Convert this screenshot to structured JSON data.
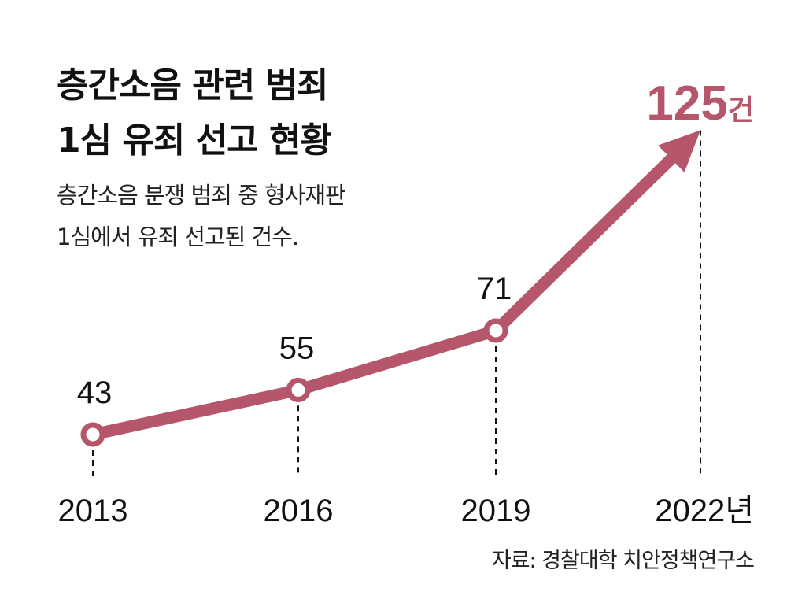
{
  "title": [
    "층간소음 관련 범죄",
    "1심 유죄 선고 현황"
  ],
  "subtitle": [
    "층간소음 분쟁 범죄 중 형사재판",
    "1심에서 유죄 선고된 건수."
  ],
  "source": "자료: 경찰대학 치안정책연구소",
  "colors": {
    "accent": "#b5566a"
  },
  "chart_data": {
    "type": "line",
    "title": "층간소음 관련 범죄 1심 유죄 선고 현황",
    "xlabel": "",
    "ylabel": "건",
    "categories": [
      "2013",
      "2016",
      "2019",
      "2022년"
    ],
    "values": [
      43,
      55,
      71,
      125
    ],
    "data_labels": [
      "43",
      "55",
      "71",
      "125"
    ],
    "highlight_unit": "건",
    "grid": false
  }
}
